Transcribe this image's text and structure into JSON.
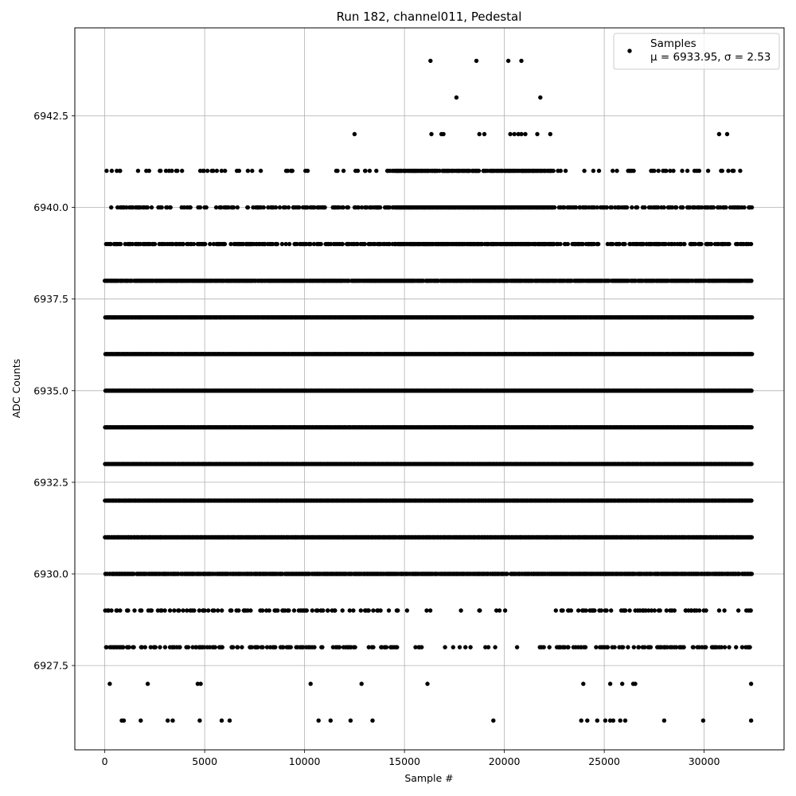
{
  "chart_data": {
    "type": "scatter",
    "title": "Run 182, channel011, Pedestal",
    "xlabel": "Sample #",
    "ylabel": "ADC Counts",
    "xlim": [
      -1500,
      34000
    ],
    "ylim": [
      6925.2,
      6944.9
    ],
    "x_ticks": [
      0,
      5000,
      10000,
      15000,
      20000,
      25000,
      30000
    ],
    "y_ticks": [
      6927.5,
      6930.0,
      6932.5,
      6935.0,
      6937.5,
      6940.0,
      6942.5
    ],
    "x_tick_labels": [
      "0",
      "5000",
      "10000",
      "15000",
      "20000",
      "25000",
      "30000"
    ],
    "y_tick_labels": [
      "6927.5",
      "6930.0",
      "6932.5",
      "6935.0",
      "6937.5",
      "6940.0",
      "6942.5"
    ],
    "grid": true,
    "legend": {
      "placement": "top-right",
      "series_label": "Samples",
      "stats_label": "μ = 6933.95, σ = 2.53"
    },
    "series": [
      {
        "name": "Samples",
        "color": "#000000",
        "marker": "circle",
        "n_samples": 32400,
        "mean": 6933.95,
        "sigma": 2.53,
        "dense_levels": [
          6928,
          6929,
          6930,
          6931,
          6932,
          6933,
          6934,
          6935,
          6936,
          6937,
          6938,
          6939,
          6940,
          6941
        ],
        "level_density": {
          "6928": 0.35,
          "6929": 0.25,
          "6930": 0.9,
          "6931": 1.0,
          "6932": 1.0,
          "6933": 1.0,
          "6934": 1.0,
          "6935": 1.0,
          "6936": 1.0,
          "6937": 1.0,
          "6938": 0.9,
          "6939": 0.45,
          "6940": 0.6,
          "6941": 0.25
        },
        "sparse_points": [
          [
            16300,
            6944
          ],
          [
            18600,
            6944
          ],
          [
            20200,
            6944
          ],
          [
            20850,
            6944
          ],
          [
            17600,
            6943
          ],
          [
            21800,
            6943
          ],
          [
            12500,
            6942
          ],
          [
            16350,
            6942
          ],
          [
            16850,
            6942
          ],
          [
            16950,
            6942
          ],
          [
            18750,
            6942
          ],
          [
            19000,
            6942
          ],
          [
            20300,
            6942
          ],
          [
            20500,
            6942
          ],
          [
            20700,
            6942
          ],
          [
            20850,
            6942
          ],
          [
            21050,
            6942
          ],
          [
            21650,
            6942
          ],
          [
            22300,
            6942
          ],
          [
            30750,
            6942
          ],
          [
            31150,
            6942
          ],
          [
            250,
            6927
          ],
          [
            2150,
            6927
          ],
          [
            4650,
            6927
          ],
          [
            4800,
            6927
          ],
          [
            10300,
            6927
          ],
          [
            12850,
            6927
          ],
          [
            16150,
            6927
          ],
          [
            23950,
            6927
          ],
          [
            25300,
            6927
          ],
          [
            25900,
            6927
          ],
          [
            26450,
            6927
          ],
          [
            26550,
            6927
          ],
          [
            32350,
            6927
          ],
          [
            850,
            6926
          ],
          [
            950,
            6926
          ],
          [
            1800,
            6926
          ],
          [
            3150,
            6926
          ],
          [
            3400,
            6926
          ],
          [
            4750,
            6926
          ],
          [
            5850,
            6926
          ],
          [
            6250,
            6926
          ],
          [
            10700,
            6926
          ],
          [
            11300,
            6926
          ],
          [
            12300,
            6926
          ],
          [
            13400,
            6926
          ],
          [
            19450,
            6926
          ],
          [
            23850,
            6926
          ],
          [
            24150,
            6926
          ],
          [
            24650,
            6926
          ],
          [
            25050,
            6926
          ],
          [
            25300,
            6926
          ],
          [
            25450,
            6926
          ],
          [
            25800,
            6926
          ],
          [
            26050,
            6926
          ],
          [
            28000,
            6926
          ],
          [
            29950,
            6926
          ],
          [
            32350,
            6926
          ]
        ]
      }
    ]
  }
}
